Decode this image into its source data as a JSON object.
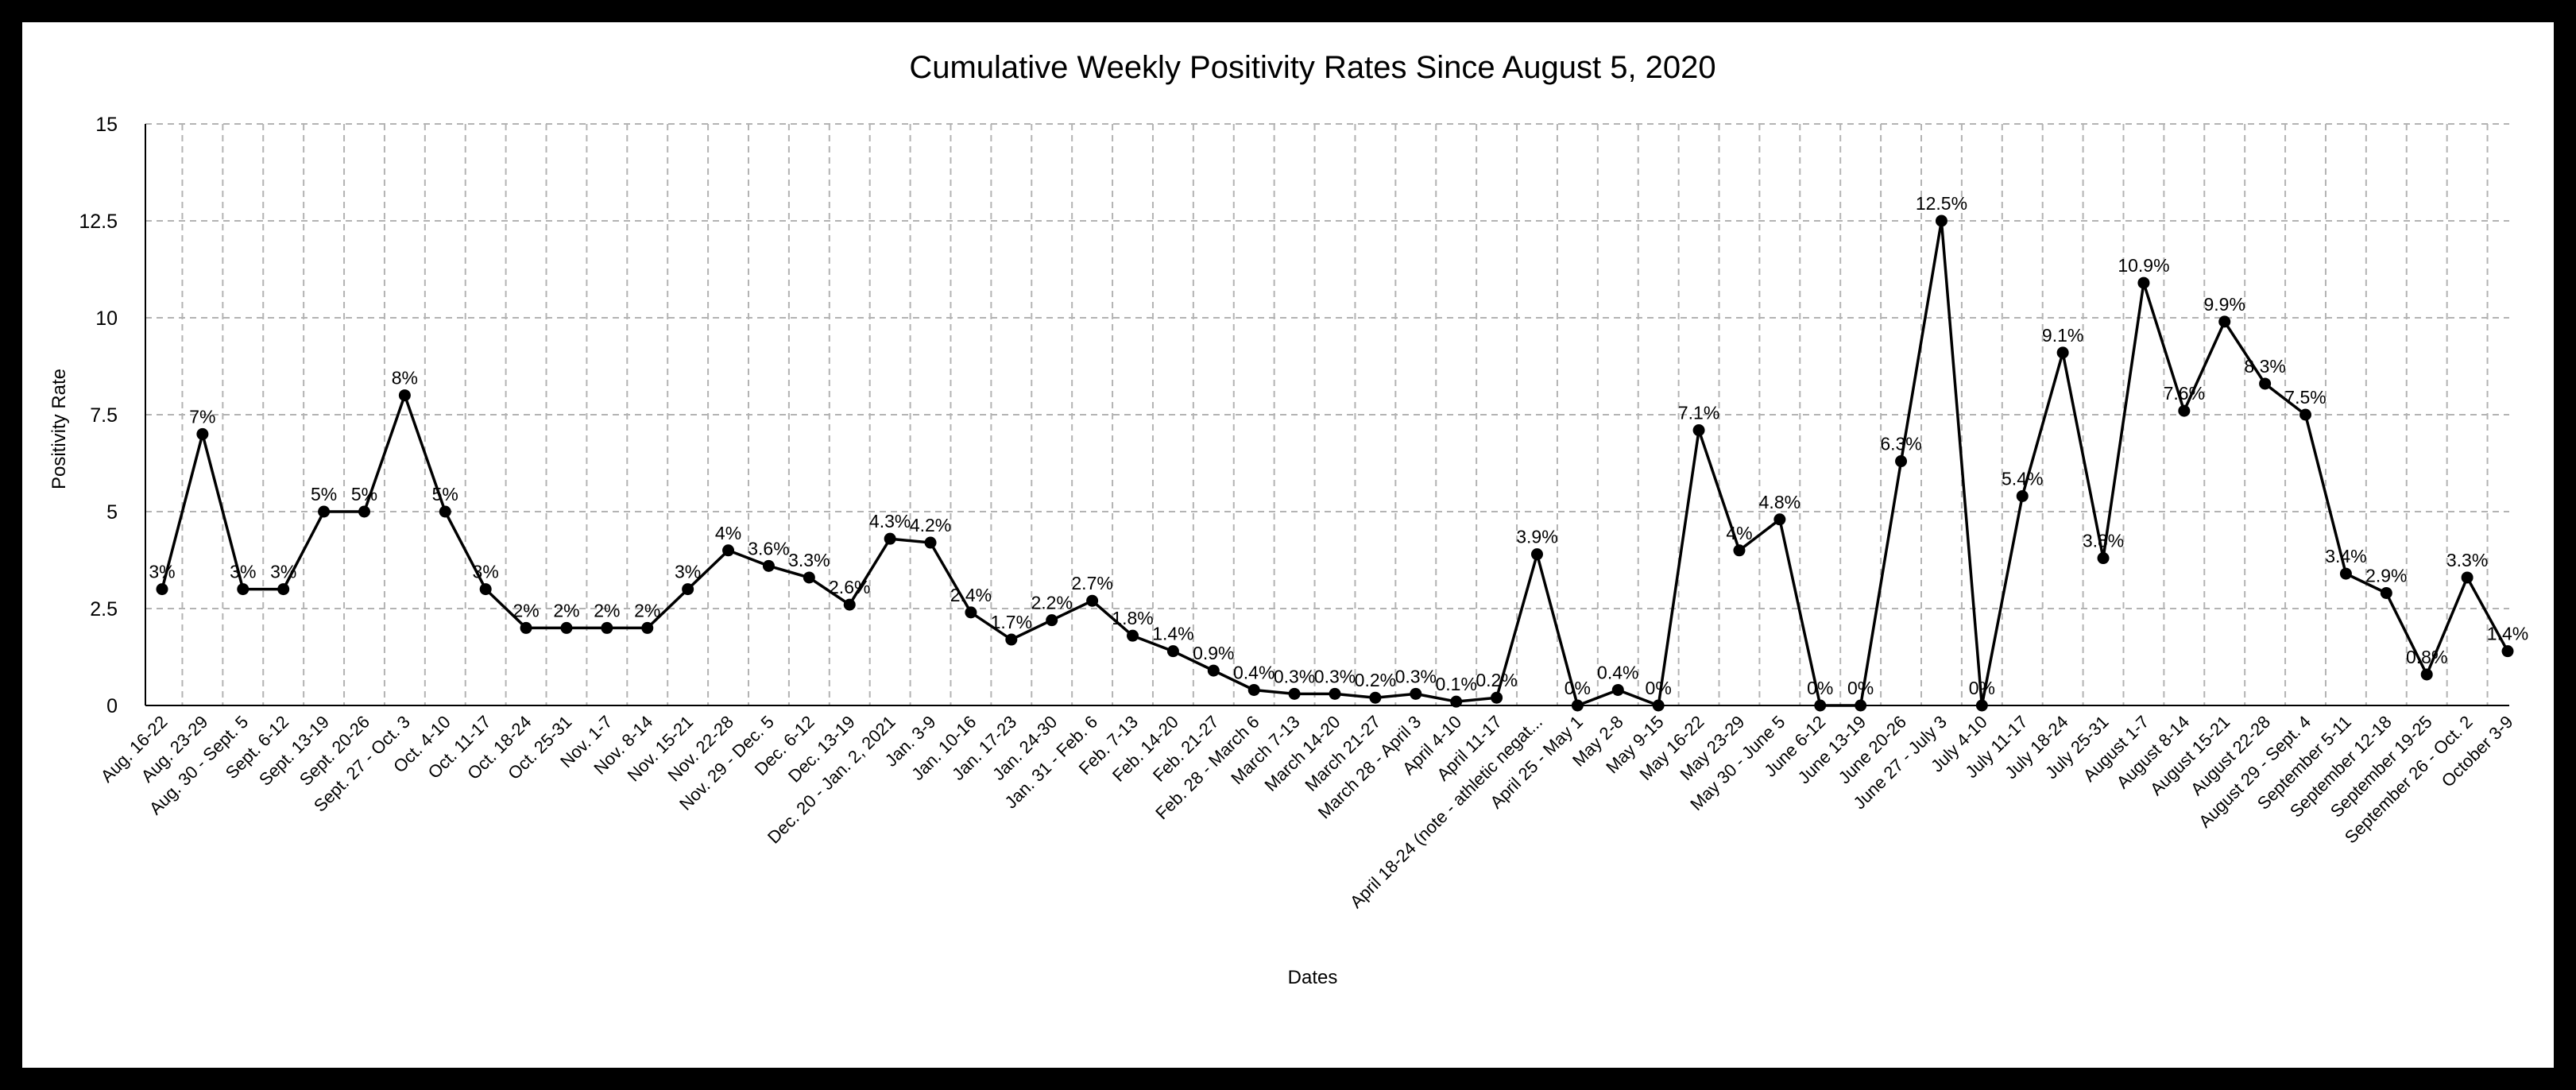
{
  "chart_data": {
    "type": "line",
    "title": "Cumulative Weekly Positivity Rates Since August 5, 2020",
    "xlabel": "Dates",
    "ylabel": "Positivity Rate",
    "ylim": [
      0,
      15
    ],
    "yticks": [
      "0",
      "2.5",
      "5",
      "7.5",
      "10",
      "12.5",
      "15"
    ],
    "grid": true,
    "legend": "none",
    "categories": [
      "Aug. 16-22",
      "Aug. 23-29",
      "Aug. 30 - Sept. 5",
      "Sept. 6-12",
      "Sept. 13-19",
      "Sept. 20-26",
      "Sept. 27 - Oct. 3",
      "Oct. 4-10",
      "Oct. 11-17",
      "Oct. 18-24",
      "Oct. 25-31",
      "Nov. 1-7",
      "Nov. 8-14",
      "Nov. 15-21",
      "Nov. 22-28",
      "Nov. 29 - Dec. 5",
      "Dec. 6-12",
      "Dec. 13-19",
      "Dec. 20 - Jan. 2, 2021",
      "Jan. 3-9",
      "Jan. 10-16",
      "Jan. 17-23",
      "Jan. 24-30",
      "Jan. 31 - Feb. 6",
      "Feb. 7-13",
      "Feb. 14-20",
      "Feb. 21-27",
      "Feb. 28 - March 6",
      "March 7-13",
      "March 14-20",
      "March 21-27",
      "March 28 - April 3",
      "April 4-10",
      "April 11-17",
      "April 18-24 (note - athletic negat...",
      "April 25 - May 1",
      "May 2-8",
      "May 9-15",
      "May 16-22",
      "May 23-29",
      "May 30 - June 5",
      "June 6-12",
      "June 13-19",
      "June 20-26",
      "June 27 - July 3",
      "July 4-10",
      "July 11-17",
      "July 18-24",
      "July 25-31",
      "August 1-7",
      "August 8-14",
      "August 15-21",
      "August 22-28",
      "August 29 - Sept. 4",
      "September 5-11",
      "September 12-18",
      "September 19-25",
      "September 26 - Oct. 2",
      "October 3-9"
    ],
    "series": [
      {
        "values": [
          3,
          7,
          3,
          3,
          5,
          5,
          8,
          5,
          3,
          2,
          2,
          2,
          2,
          3,
          4,
          3.6,
          3.3,
          2.6,
          4.3,
          4.2,
          2.4,
          1.7,
          2.2,
          2.7,
          1.8,
          1.4,
          0.9,
          0.4,
          0.3,
          0.3,
          0.2,
          0.3,
          0.1,
          0.2,
          3.9,
          0,
          0.4,
          0,
          7.1,
          4,
          4.8,
          0,
          0,
          6.3,
          12.5,
          0,
          5.4,
          9.1,
          3.8,
          10.9,
          7.6,
          9.9,
          8.3,
          7.5,
          3.4,
          2.9,
          0.8,
          3.3,
          1.4
        ],
        "labels": [
          "3%",
          "7%",
          "3%",
          "3%",
          "5%",
          "5%",
          "8%",
          "5%",
          "3%",
          "2%",
          "2%",
          "2%",
          "2%",
          "3%",
          "4%",
          "3.6%",
          "3.3%",
          "2.6%",
          "4.3%",
          "4.2%",
          "2.4%",
          "1.7%",
          "2.2%",
          "2.7%",
          "1.8%",
          "1.4%",
          "0.9%",
          "0.4%",
          "0.3%",
          "0.3%",
          "0.2%",
          "0.3%",
          "0.1%",
          "0.2%",
          "3.9%",
          "0%",
          "0.4%",
          "0%",
          "7.1%",
          "4%",
          "4.8%",
          "0%",
          "0%",
          "6.3%",
          "12.5%",
          "0%",
          "5.4%",
          "9.1%",
          "3.8%",
          "10.9%",
          "7.6%",
          "9.9%",
          "8.3%",
          "7.5%",
          "3.4%",
          "2.9%",
          "0.8%",
          "3.3%",
          "1.4%"
        ],
        "color": "#000000"
      }
    ]
  }
}
